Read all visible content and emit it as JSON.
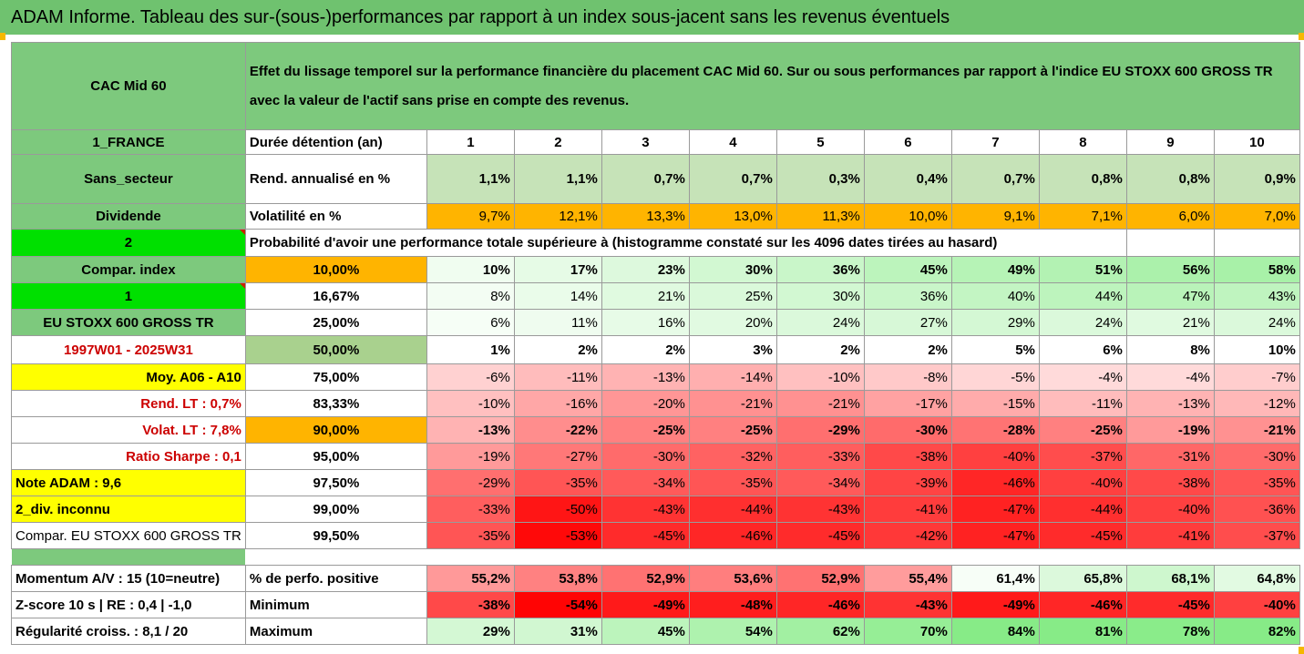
{
  "title": "ADAM Informe. Tableau des sur-(sous-)performances par rapport à un index sous-jacent sans les revenus éventuels",
  "fund_name": "CAC Mid 60",
  "description": "Effet du lissage temporel sur la performance financière du placement CAC Mid 60. Sur ou sous performances par rapport à l'indice EU STOXX 600 GROSS TR avec la valeur de l'actif sans prise en compte des revenus.",
  "colors": {
    "header_green": "#7dc97d",
    "title_green": "#6fc26f",
    "orange": "#ffb400",
    "yellow": "#ffff00",
    "lime": "#00e000"
  },
  "left": {
    "country": "1_FRANCE",
    "sector": "Sans_secteur",
    "dividend": "Dividende",
    "number_a": "2",
    "compar_index": "Compar. index",
    "number_b": "1",
    "index_name": "EU STOXX 600 GROSS TR",
    "period": "1997W01 - 2025W31",
    "moy": "Moy. A06 - A10",
    "rend_lt": "Rend. LT :   0,7%",
    "volat_lt": "Volat. LT :   7,8%",
    "sharpe": "Ratio Sharpe :   0,1",
    "note": "Note ADAM : 9,6",
    "div": "2_div. inconnu",
    "compar_full": "Compar. EU STOXX 600 GROSS TR",
    "momentum": "Momentum A/V : 15 (10=neutre)",
    "zscore": "Z-score 10 s  | RE : 0,4 | -1,0",
    "regularite": "Régularité croiss. : 8,1 / 20"
  },
  "row_labels": {
    "duree": "Durée détention (an)",
    "rend": "Rend. annualisé en %",
    "volat": "Volatilité en %",
    "proba": "Probabilité d'avoir une performance totale supérieure à (histogramme constaté sur les 4096 dates tirées au hasard)",
    "pct_pos": "% de perfo. positive",
    "minimum": "Minimum",
    "maximum": "Maximum"
  },
  "years": [
    "1",
    "2",
    "3",
    "4",
    "5",
    "6",
    "7",
    "8",
    "9",
    "10"
  ],
  "rend_values": [
    "1,1%",
    "1,1%",
    "0,7%",
    "0,7%",
    "0,3%",
    "0,4%",
    "0,7%",
    "0,8%",
    "0,8%",
    "0,9%"
  ],
  "volat_values": [
    "9,7%",
    "12,1%",
    "13,3%",
    "13,0%",
    "11,3%",
    "10,0%",
    "9,1%",
    "7,1%",
    "6,0%",
    "7,0%"
  ],
  "percentile_rows": [
    {
      "pct": "10,00%",
      "values": [
        "10%",
        "17%",
        "23%",
        "30%",
        "36%",
        "45%",
        "49%",
        "51%",
        "56%",
        "58%"
      ]
    },
    {
      "pct": "16,67%",
      "values": [
        "8%",
        "14%",
        "21%",
        "25%",
        "30%",
        "36%",
        "40%",
        "44%",
        "47%",
        "43%"
      ]
    },
    {
      "pct": "25,00%",
      "values": [
        "6%",
        "11%",
        "16%",
        "20%",
        "24%",
        "27%",
        "29%",
        "24%",
        "21%",
        "24%"
      ]
    },
    {
      "pct": "50,00%",
      "values": [
        "1%",
        "2%",
        "2%",
        "3%",
        "2%",
        "2%",
        "5%",
        "6%",
        "8%",
        "10%"
      ]
    },
    {
      "pct": "75,00%",
      "values": [
        "-6%",
        "-11%",
        "-13%",
        "-14%",
        "-10%",
        "-8%",
        "-5%",
        "-4%",
        "-4%",
        "-7%"
      ]
    },
    {
      "pct": "83,33%",
      "values": [
        "-10%",
        "-16%",
        "-20%",
        "-21%",
        "-21%",
        "-17%",
        "-15%",
        "-11%",
        "-13%",
        "-12%"
      ]
    },
    {
      "pct": "90,00%",
      "values": [
        "-13%",
        "-22%",
        "-25%",
        "-25%",
        "-29%",
        "-30%",
        "-28%",
        "-25%",
        "-19%",
        "-21%"
      ]
    },
    {
      "pct": "95,00%",
      "values": [
        "-19%",
        "-27%",
        "-30%",
        "-32%",
        "-33%",
        "-38%",
        "-40%",
        "-37%",
        "-31%",
        "-30%"
      ]
    },
    {
      "pct": "97,50%",
      "values": [
        "-29%",
        "-35%",
        "-34%",
        "-35%",
        "-34%",
        "-39%",
        "-46%",
        "-40%",
        "-38%",
        "-35%"
      ]
    },
    {
      "pct": "99,00%",
      "values": [
        "-33%",
        "-50%",
        "-43%",
        "-44%",
        "-43%",
        "-41%",
        "-47%",
        "-44%",
        "-40%",
        "-36%"
      ]
    },
    {
      "pct": "99,50%",
      "values": [
        "-35%",
        "-53%",
        "-45%",
        "-46%",
        "-45%",
        "-42%",
        "-47%",
        "-45%",
        "-41%",
        "-37%"
      ]
    }
  ],
  "pct_positive": [
    "55,2%",
    "53,8%",
    "52,9%",
    "53,6%",
    "52,9%",
    "55,4%",
    "61,4%",
    "65,8%",
    "68,1%",
    "64,8%"
  ],
  "minimum": [
    "-38%",
    "-54%",
    "-49%",
    "-48%",
    "-46%",
    "-43%",
    "-49%",
    "-46%",
    "-45%",
    "-40%"
  ],
  "maximum": [
    "29%",
    "31%",
    "45%",
    "54%",
    "62%",
    "70%",
    "84%",
    "81%",
    "78%",
    "82%"
  ]
}
